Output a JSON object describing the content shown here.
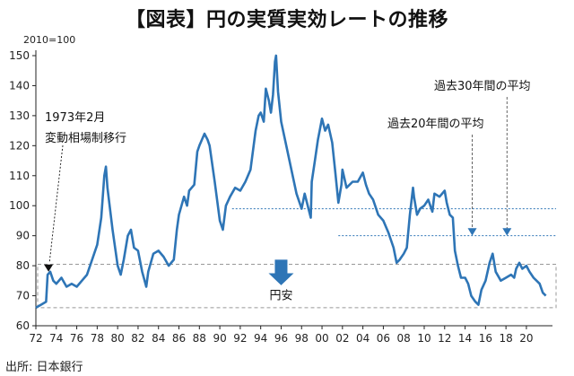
{
  "title": "【図表】円の実質実効レートの推移",
  "source": "出所: 日本銀行",
  "chart_data": {
    "type": "line",
    "title": "【図表】円の実質実効レートの推移",
    "base_label": "2010=100",
    "xlabel": "",
    "ylabel": "",
    "ylim": [
      60,
      150
    ],
    "xlim": [
      1972,
      2023
    ],
    "y_ticks": [
      60,
      70,
      80,
      90,
      100,
      110,
      120,
      130,
      140,
      150
    ],
    "x_ticks": [
      "72",
      "74",
      "76",
      "78",
      "80",
      "82",
      "84",
      "86",
      "88",
      "90",
      "92",
      "94",
      "96",
      "98",
      "00",
      "02",
      "04",
      "06",
      "08",
      "10",
      "12",
      "14",
      "16",
      "18",
      "20"
    ],
    "grid": false,
    "legend": "none",
    "color": "#2e75b6",
    "series": [
      {
        "values": [
          [
            1972.0,
            66
          ],
          [
            1972.5,
            67
          ],
          [
            1973.0,
            68
          ],
          [
            1973.15,
            77
          ],
          [
            1973.4,
            78
          ],
          [
            1973.7,
            75
          ],
          [
            1974.0,
            74
          ],
          [
            1974.5,
            76
          ],
          [
            1975.0,
            73
          ],
          [
            1975.5,
            74
          ],
          [
            1976.0,
            73
          ],
          [
            1976.5,
            75
          ],
          [
            1977.0,
            77
          ],
          [
            1977.5,
            82
          ],
          [
            1978.0,
            87
          ],
          [
            1978.4,
            96
          ],
          [
            1978.7,
            110
          ],
          [
            1978.85,
            113
          ],
          [
            1979.0,
            106
          ],
          [
            1979.5,
            92
          ],
          [
            1980.0,
            80
          ],
          [
            1980.3,
            77
          ],
          [
            1980.6,
            82
          ],
          [
            1981.0,
            90
          ],
          [
            1981.3,
            92
          ],
          [
            1981.6,
            86
          ],
          [
            1982.0,
            85
          ],
          [
            1982.4,
            78
          ],
          [
            1982.8,
            73
          ],
          [
            1983.0,
            78
          ],
          [
            1983.5,
            84
          ],
          [
            1984.0,
            85
          ],
          [
            1984.5,
            83
          ],
          [
            1985.0,
            80
          ],
          [
            1985.5,
            82
          ],
          [
            1985.8,
            92
          ],
          [
            1986.0,
            97
          ],
          [
            1986.5,
            103
          ],
          [
            1986.8,
            100
          ],
          [
            1987.0,
            105
          ],
          [
            1987.5,
            107
          ],
          [
            1987.8,
            118
          ],
          [
            1988.0,
            120
          ],
          [
            1988.5,
            124
          ],
          [
            1988.8,
            122
          ],
          [
            1989.0,
            120
          ],
          [
            1989.5,
            108
          ],
          [
            1990.0,
            95
          ],
          [
            1990.3,
            92
          ],
          [
            1990.6,
            100
          ],
          [
            1991.0,
            103
          ],
          [
            1991.5,
            106
          ],
          [
            1992.0,
            105
          ],
          [
            1992.5,
            108
          ],
          [
            1993.0,
            112
          ],
          [
            1993.5,
            125
          ],
          [
            1993.8,
            130
          ],
          [
            1994.0,
            131
          ],
          [
            1994.3,
            128
          ],
          [
            1994.5,
            139
          ],
          [
            1994.8,
            135
          ],
          [
            1995.0,
            131
          ],
          [
            1995.2,
            137
          ],
          [
            1995.4,
            148
          ],
          [
            1995.5,
            150
          ],
          [
            1995.7,
            138
          ],
          [
            1996.0,
            128
          ],
          [
            1996.5,
            120
          ],
          [
            1997.0,
            112
          ],
          [
            1997.5,
            104
          ],
          [
            1998.0,
            99
          ],
          [
            1998.3,
            104
          ],
          [
            1998.6,
            100
          ],
          [
            1998.9,
            96
          ],
          [
            1999.0,
            108
          ],
          [
            1999.3,
            115
          ],
          [
            1999.6,
            122
          ],
          [
            2000.0,
            129
          ],
          [
            2000.3,
            125
          ],
          [
            2000.6,
            127
          ],
          [
            2001.0,
            121
          ],
          [
            2001.3,
            111
          ],
          [
            2001.6,
            101
          ],
          [
            2001.9,
            107
          ],
          [
            2002.0,
            112
          ],
          [
            2002.4,
            106
          ],
          [
            2003.0,
            108
          ],
          [
            2003.5,
            108
          ],
          [
            2004.0,
            111
          ],
          [
            2004.3,
            107
          ],
          [
            2004.6,
            104
          ],
          [
            2005.0,
            102
          ],
          [
            2005.5,
            97
          ],
          [
            2006.0,
            95
          ],
          [
            2006.5,
            91
          ],
          [
            2007.0,
            86
          ],
          [
            2007.3,
            81
          ],
          [
            2007.6,
            82
          ],
          [
            2008.0,
            84
          ],
          [
            2008.3,
            86
          ],
          [
            2008.6,
            97
          ],
          [
            2008.9,
            106
          ],
          [
            2009.0,
            103
          ],
          [
            2009.3,
            97
          ],
          [
            2009.6,
            99
          ],
          [
            2010.0,
            100
          ],
          [
            2010.4,
            102
          ],
          [
            2010.8,
            98
          ],
          [
            2011.0,
            104
          ],
          [
            2011.5,
            103
          ],
          [
            2012.0,
            105
          ],
          [
            2012.2,
            101
          ],
          [
            2012.5,
            97
          ],
          [
            2012.8,
            96
          ],
          [
            2013.0,
            85
          ],
          [
            2013.3,
            80
          ],
          [
            2013.6,
            76
          ],
          [
            2014.0,
            76
          ],
          [
            2014.3,
            74
          ],
          [
            2014.6,
            70
          ],
          [
            2015.0,
            68
          ],
          [
            2015.3,
            67
          ],
          [
            2015.6,
            72
          ],
          [
            2016.0,
            75
          ],
          [
            2016.4,
            81
          ],
          [
            2016.7,
            84
          ],
          [
            2017.0,
            78
          ],
          [
            2017.5,
            75
          ],
          [
            2018.0,
            76
          ],
          [
            2018.5,
            77
          ],
          [
            2018.8,
            76
          ],
          [
            2019.0,
            79
          ],
          [
            2019.3,
            81
          ],
          [
            2019.6,
            79
          ],
          [
            2020.0,
            80
          ],
          [
            2020.3,
            78
          ],
          [
            2020.7,
            76
          ],
          [
            2021.0,
            75
          ],
          [
            2021.3,
            74
          ],
          [
            2021.6,
            71
          ],
          [
            2021.9,
            70
          ]
        ]
      }
    ],
    "reference_lines": [
      {
        "label": "過去30年間の平均",
        "value": 99
      },
      {
        "label": "過去20年間の平均",
        "value": 90
      }
    ],
    "annotations": [
      {
        "id": "float",
        "text_lines": [
          "1973年2月",
          "変動相場制移行"
        ],
        "x": 1973.15,
        "y": 78
      },
      {
        "id": "yen_weak",
        "text": "円安",
        "x": 1996,
        "y": 72
      }
    ]
  }
}
